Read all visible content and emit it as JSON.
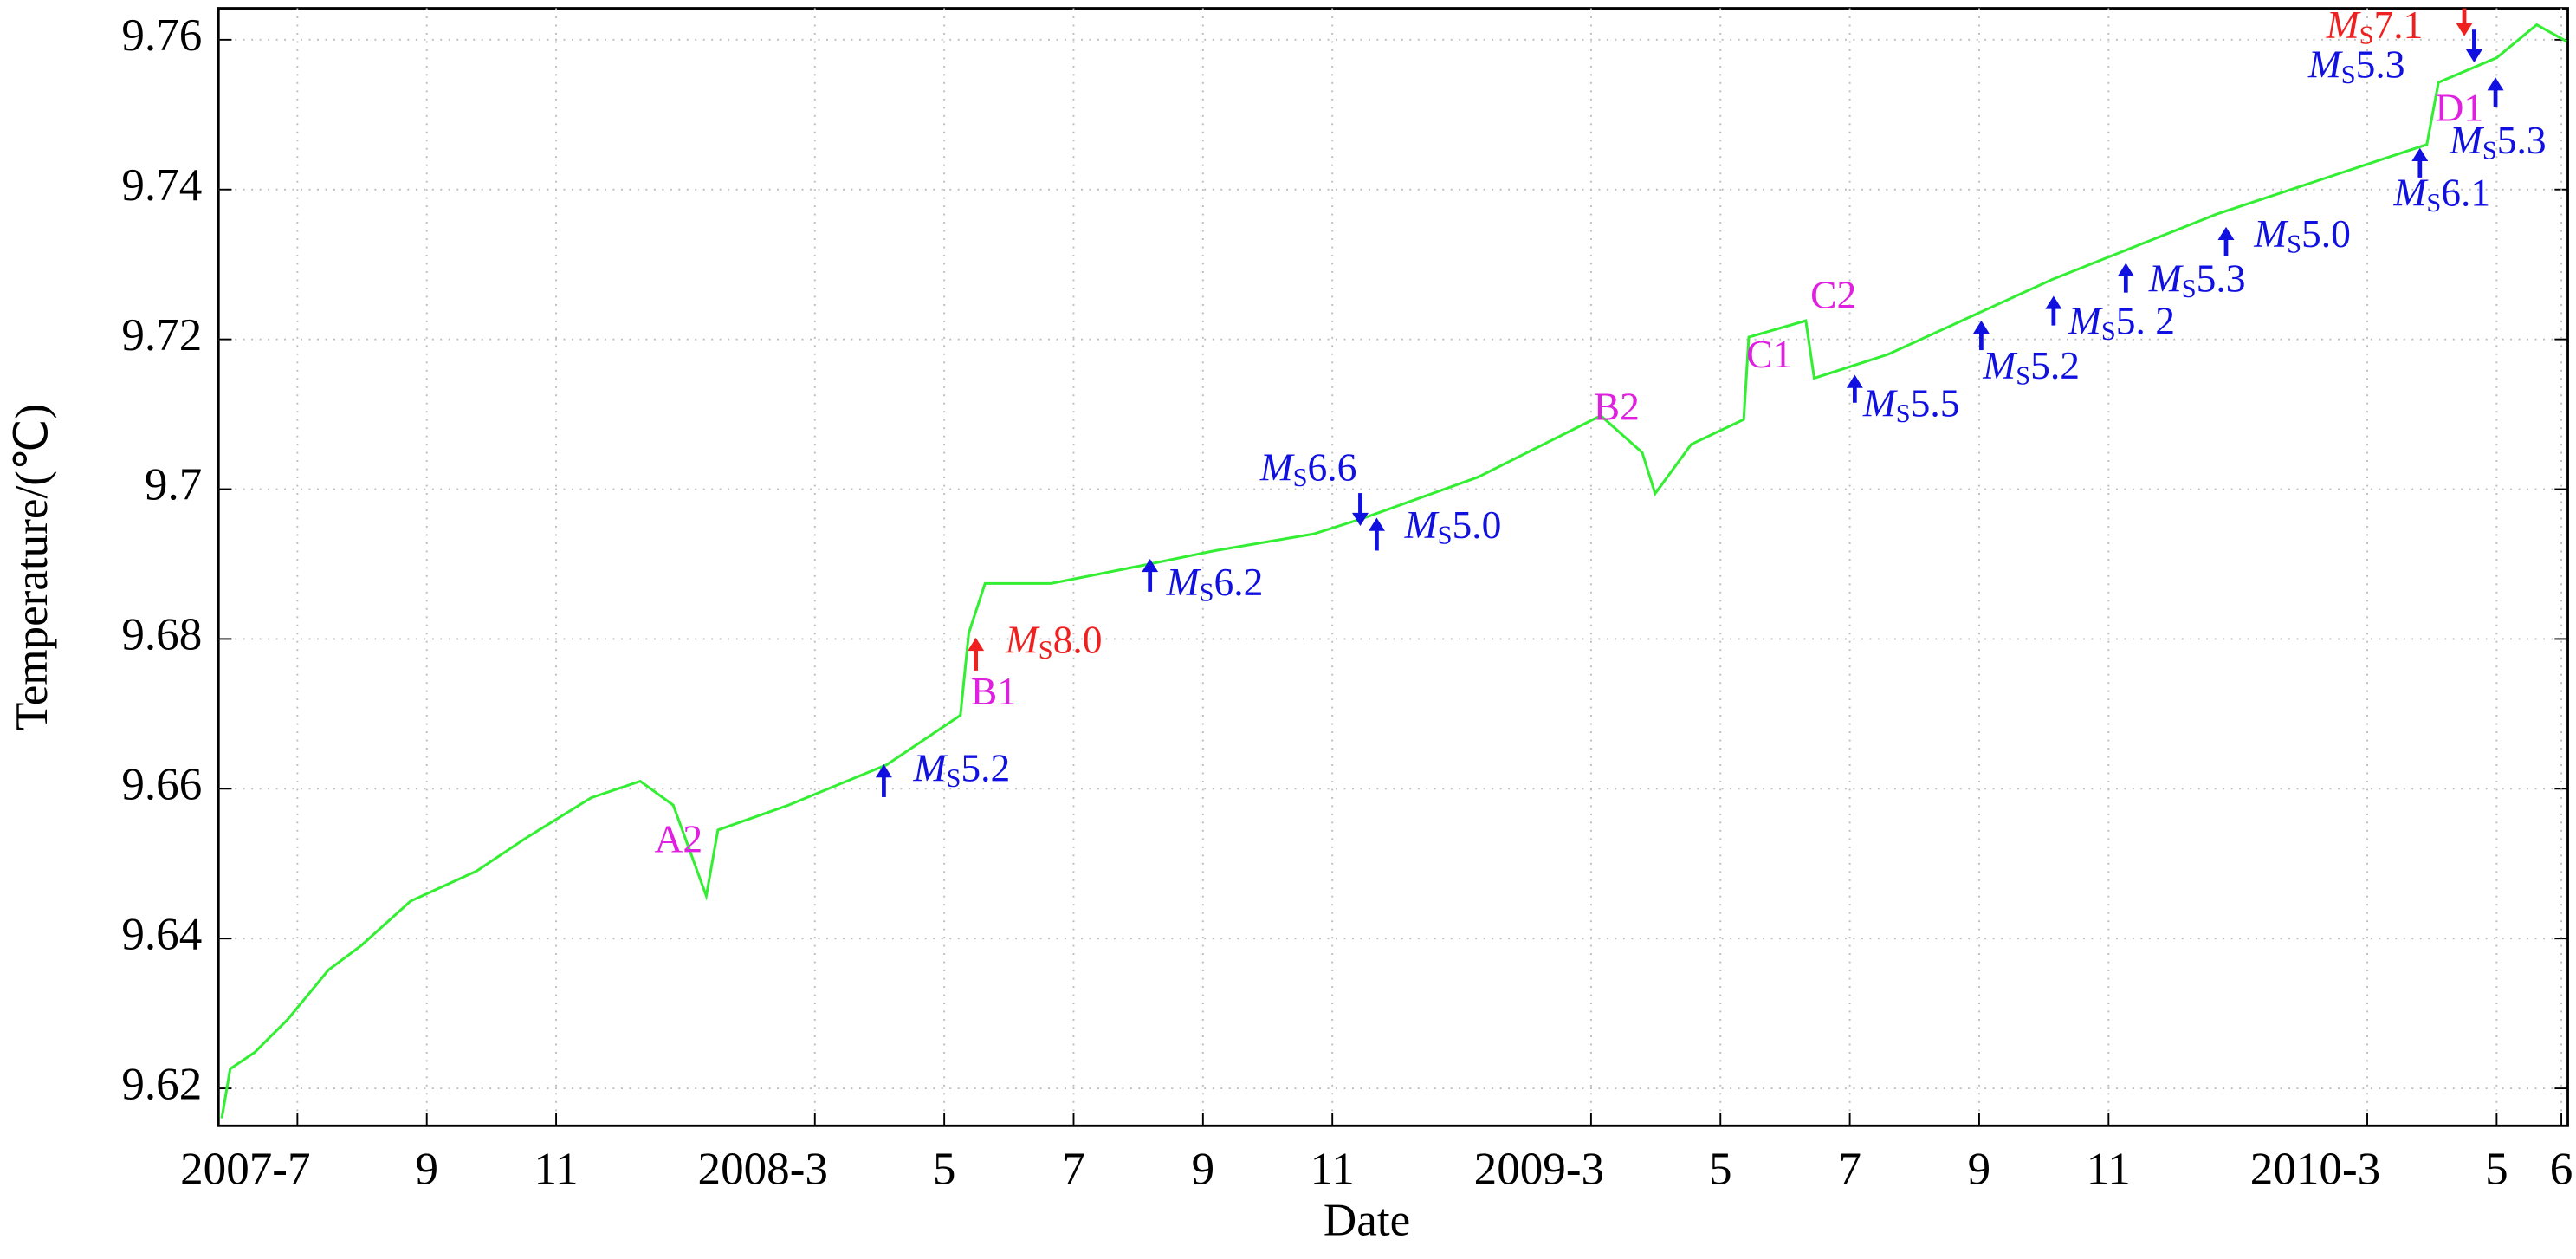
{
  "chart_data": {
    "type": "line",
    "xlabel": "Date",
    "ylabel": "Temperature/(℃)",
    "xlim": [
      -1.22,
      35.1
    ],
    "xticks": [
      {
        "value": 0,
        "label": "2007-7"
      },
      {
        "value": 2,
        "label": "9"
      },
      {
        "value": 4,
        "label": "11"
      },
      {
        "value": 8,
        "label": "2008-3"
      },
      {
        "value": 10,
        "label": "5"
      },
      {
        "value": 12,
        "label": "7"
      },
      {
        "value": 14,
        "label": "9"
      },
      {
        "value": 16,
        "label": "11"
      },
      {
        "value": 20,
        "label": "2009-3"
      },
      {
        "value": 22,
        "label": "5"
      },
      {
        "value": 24,
        "label": "7"
      },
      {
        "value": 26,
        "label": "9"
      },
      {
        "value": 28,
        "label": "11"
      },
      {
        "value": 32,
        "label": "2010-3"
      },
      {
        "value": 34,
        "label": "5"
      },
      {
        "value": 35,
        "label": "6"
      }
    ],
    "ylim": [
      9.615,
      9.7642
    ],
    "yticks": [
      9.62,
      9.64,
      9.66,
      9.68,
      9.7,
      9.72,
      9.74,
      9.76
    ],
    "grid": true,
    "color": "#33ee33",
    "x": [
      -1.17,
      -1.04,
      -0.66,
      -0.15,
      0.48,
      0.99,
      1.75,
      2.77,
      3.53,
      4.54,
      5.3,
      5.81,
      6.32,
      6.5,
      7.59,
      9.11,
      10.25,
      10.38,
      10.63,
      11.65,
      13.17,
      14.19,
      15.71,
      16.47,
      18.25,
      20.15,
      20.79,
      20.99,
      21.55,
      22.36,
      22.44,
      23.32,
      23.45,
      24.59,
      27.13,
      29.67,
      32.92,
      33.1,
      34.0,
      34.62,
      35.08
    ],
    "values": [
      9.616,
      9.6226,
      9.6248,
      9.6292,
      9.6358,
      9.6391,
      9.645,
      9.649,
      9.6534,
      9.6588,
      9.661,
      9.6578,
      9.6457,
      9.6545,
      9.6578,
      9.6632,
      9.6698,
      9.6808,
      9.6874,
      9.6874,
      9.69,
      9.6918,
      9.694,
      9.6961,
      9.7016,
      9.7098,
      9.7049,
      9.6994,
      9.706,
      9.7093,
      9.7203,
      9.7225,
      9.7148,
      9.718,
      9.728,
      9.7367,
      9.746,
      9.7543,
      9.7576,
      9.762,
      9.7598
    ],
    "labels": [
      {
        "text": "A2",
        "color": "#e020e0"
      },
      {
        "text": "B1",
        "color": "#e020e0"
      },
      {
        "text": "B2",
        "color": "#e020e0"
      },
      {
        "text": "C1",
        "color": "#e020e0"
      },
      {
        "text": "C2",
        "color": "#e020e0"
      },
      {
        "text": "D1",
        "color": "#e020e0"
      }
    ],
    "events": [
      {
        "text": "MS5.2",
        "color": "#1010e0"
      },
      {
        "text": "MS8.0",
        "color": "#ee2020"
      },
      {
        "text": "MS6.2",
        "color": "#1010e0"
      },
      {
        "text": "MS6.6",
        "color": "#1010e0"
      },
      {
        "text": "MS5.0",
        "color": "#1010e0"
      },
      {
        "text": "MS5.5",
        "color": "#1010e0"
      },
      {
        "text": "MS5.2",
        "color": "#1010e0"
      },
      {
        "text": "MS5. 2",
        "color": "#1010e0"
      },
      {
        "text": "MS5.3",
        "color": "#1010e0"
      },
      {
        "text": "MS5.0",
        "color": "#1010e0"
      },
      {
        "text": "MS6.1",
        "color": "#1010e0"
      },
      {
        "text": "MS5.3",
        "color": "#1010e0"
      },
      {
        "text": "MS5.3",
        "color": "#1010e0"
      },
      {
        "text": "MS7.1",
        "color": "#ee2020"
      }
    ]
  }
}
